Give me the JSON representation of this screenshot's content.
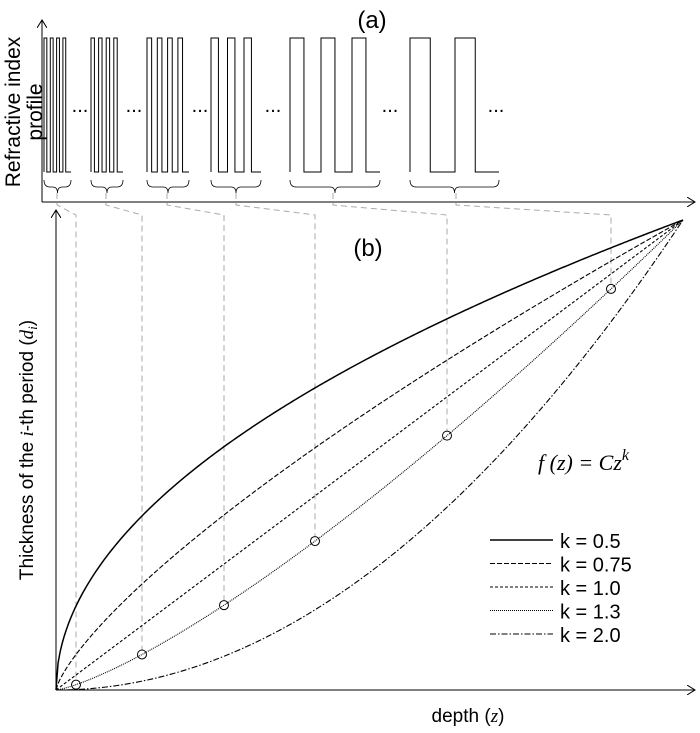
{
  "panel_a": {
    "label": "(a)",
    "ylabel_line1": "Refractive index",
    "ylabel_line2": "profile",
    "ellipsis": "..."
  },
  "panel_b": {
    "label": "(b)",
    "ylabel_prefix": "Thickness of the ",
    "ylabel_i": "i",
    "ylabel_mid": "-th period (",
    "ylabel_d": "d",
    "ylabel_sub": "i",
    "ylabel_suffix": ")",
    "xlabel_prefix": "depth (",
    "xlabel_z": "z",
    "xlabel_suffix": ")",
    "formula": "f (z) = Cz",
    "formula_exp": "k"
  },
  "chart_data": {
    "type": "line",
    "function": "f(z) = C z^k",
    "series": [
      {
        "name": "k = 0.5",
        "k": 0.5,
        "dash": "solid"
      },
      {
        "name": "k = 0.75",
        "k": 0.75,
        "dash": "dashed"
      },
      {
        "name": "k = 1.0",
        "k": 1.0,
        "dash": "short-dashed"
      },
      {
        "name": "k = 1.3",
        "k": 1.3,
        "dash": "dotted",
        "markers": "open-circles"
      },
      {
        "name": "k = 2.0",
        "k": 2.0,
        "dash": "dash-dot"
      }
    ],
    "legend_placement": "bottom-right",
    "grid": false,
    "colors": {
      "line": "#000000",
      "guide": "#aaaaaa"
    }
  }
}
